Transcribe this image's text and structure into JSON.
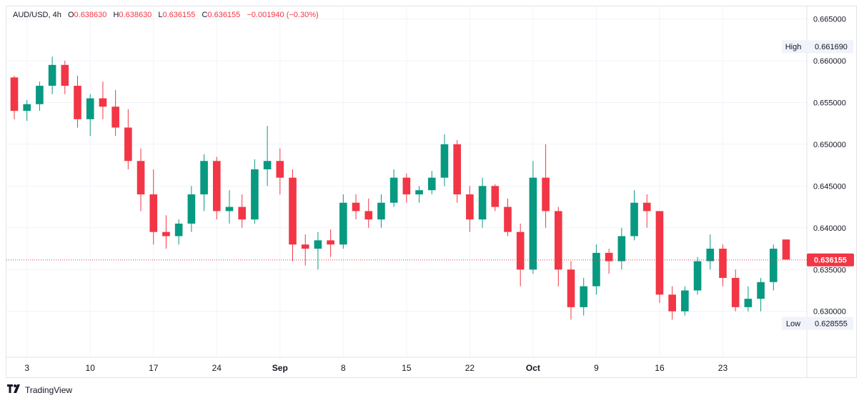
{
  "header": {
    "symbol": "AUD/USD",
    "interval": "4h",
    "open_label": "O",
    "open": "0.638630",
    "high_label": "H",
    "high": "0.638630",
    "low_label": "L",
    "low": "0.636155",
    "close_label": "C",
    "close": "0.636155",
    "change": "−0.001940 (−0.30%)"
  },
  "footer": {
    "brand": "TradingView"
  },
  "colors": {
    "up": "#089981",
    "down": "#f23645",
    "grid": "#f0f3fa",
    "text": "#131722",
    "badge_bg": "#f0f3fa"
  },
  "chart_data": {
    "type": "candlestick",
    "y_ticks": [
      "0.665000",
      "0.660000",
      "0.655000",
      "0.650000",
      "0.645000",
      "0.640000",
      "0.635000",
      "0.630000"
    ],
    "ylim": [
      0.6245,
      0.6665
    ],
    "x_ticks": [
      {
        "label": "3",
        "pos": 1
      },
      {
        "label": "10",
        "pos": 6
      },
      {
        "label": "17",
        "pos": 11
      },
      {
        "label": "24",
        "pos": 16
      },
      {
        "label": "Sep",
        "pos": 21
      },
      {
        "label": "8",
        "pos": 26
      },
      {
        "label": "15",
        "pos": 31
      },
      {
        "label": "22",
        "pos": 36
      },
      {
        "label": "Oct",
        "pos": 41
      },
      {
        "label": "9",
        "pos": 46
      },
      {
        "label": "16",
        "pos": 51
      },
      {
        "label": "23",
        "pos": 56
      }
    ],
    "x_range": [
      0,
      61
    ],
    "high_marker": {
      "label": "High",
      "value": "0.661690"
    },
    "low_marker": {
      "label": "Low",
      "value": "0.628555"
    },
    "last_price": {
      "value": "0.636155",
      "num": 0.636155
    },
    "grid": true,
    "candles": [
      [
        0.658,
        0.6582,
        0.653,
        0.654
      ],
      [
        0.654,
        0.6553,
        0.6528,
        0.6548
      ],
      [
        0.6548,
        0.6575,
        0.654,
        0.657
      ],
      [
        0.657,
        0.6605,
        0.656,
        0.6595
      ],
      [
        0.6595,
        0.66,
        0.656,
        0.657
      ],
      [
        0.657,
        0.6582,
        0.652,
        0.653
      ],
      [
        0.653,
        0.656,
        0.651,
        0.6555
      ],
      [
        0.6555,
        0.6575,
        0.653,
        0.6545
      ],
      [
        0.6545,
        0.6565,
        0.651,
        0.652
      ],
      [
        0.652,
        0.6542,
        0.647,
        0.648
      ],
      [
        0.648,
        0.6495,
        0.642,
        0.644
      ],
      [
        0.644,
        0.647,
        0.638,
        0.6395
      ],
      [
        0.6395,
        0.6415,
        0.6375,
        0.639
      ],
      [
        0.639,
        0.641,
        0.638,
        0.6405
      ],
      [
        0.6405,
        0.645,
        0.6395,
        0.644
      ],
      [
        0.644,
        0.6488,
        0.642,
        0.648
      ],
      [
        0.648,
        0.6485,
        0.641,
        0.642
      ],
      [
        0.642,
        0.6445,
        0.6405,
        0.6425
      ],
      [
        0.6425,
        0.644,
        0.64,
        0.641
      ],
      [
        0.641,
        0.6482,
        0.6405,
        0.647
      ],
      [
        0.647,
        0.6522,
        0.645,
        0.648
      ],
      [
        0.648,
        0.6495,
        0.644,
        0.646
      ],
      [
        0.646,
        0.647,
        0.636,
        0.638
      ],
      [
        0.638,
        0.6392,
        0.6355,
        0.6375
      ],
      [
        0.6375,
        0.6395,
        0.635,
        0.6385
      ],
      [
        0.6385,
        0.6398,
        0.6365,
        0.638
      ],
      [
        0.638,
        0.644,
        0.6375,
        0.643
      ],
      [
        0.643,
        0.644,
        0.641,
        0.642
      ],
      [
        0.642,
        0.6435,
        0.64,
        0.641
      ],
      [
        0.641,
        0.644,
        0.64,
        0.643
      ],
      [
        0.643,
        0.647,
        0.6425,
        0.646
      ],
      [
        0.646,
        0.6465,
        0.643,
        0.644
      ],
      [
        0.644,
        0.645,
        0.643,
        0.6445
      ],
      [
        0.6445,
        0.6468,
        0.644,
        0.646
      ],
      [
        0.646,
        0.6512,
        0.645,
        0.65
      ],
      [
        0.65,
        0.6505,
        0.643,
        0.644
      ],
      [
        0.644,
        0.645,
        0.6395,
        0.641
      ],
      [
        0.641,
        0.646,
        0.64,
        0.645
      ],
      [
        0.645,
        0.6452,
        0.642,
        0.6425
      ],
      [
        0.6425,
        0.6435,
        0.639,
        0.6395
      ],
      [
        0.6395,
        0.6405,
        0.633,
        0.635
      ],
      [
        0.635,
        0.648,
        0.6345,
        0.646
      ],
      [
        0.646,
        0.65,
        0.64,
        0.642
      ],
      [
        0.642,
        0.6425,
        0.633,
        0.635
      ],
      [
        0.635,
        0.636,
        0.629,
        0.6305
      ],
      [
        0.6305,
        0.634,
        0.6295,
        0.633
      ],
      [
        0.633,
        0.638,
        0.632,
        0.637
      ],
      [
        0.637,
        0.6375,
        0.6345,
        0.636
      ],
      [
        0.636,
        0.64,
        0.635,
        0.639
      ],
      [
        0.639,
        0.6445,
        0.6385,
        0.643
      ],
      [
        0.643,
        0.644,
        0.64,
        0.642
      ],
      [
        0.642,
        0.642,
        0.631,
        0.632
      ],
      [
        0.632,
        0.633,
        0.629,
        0.63
      ],
      [
        0.63,
        0.633,
        0.6295,
        0.6325
      ],
      [
        0.6325,
        0.6365,
        0.632,
        0.636
      ],
      [
        0.636,
        0.6392,
        0.635,
        0.6375
      ],
      [
        0.6375,
        0.638,
        0.633,
        0.634
      ],
      [
        0.634,
        0.635,
        0.63,
        0.6305
      ],
      [
        0.6305,
        0.633,
        0.63,
        0.6315
      ],
      [
        0.6315,
        0.634,
        0.63,
        0.6335
      ],
      [
        0.6335,
        0.638,
        0.6325,
        0.6375
      ],
      [
        0.6386,
        0.6386,
        0.6362,
        0.6362
      ]
    ]
  }
}
